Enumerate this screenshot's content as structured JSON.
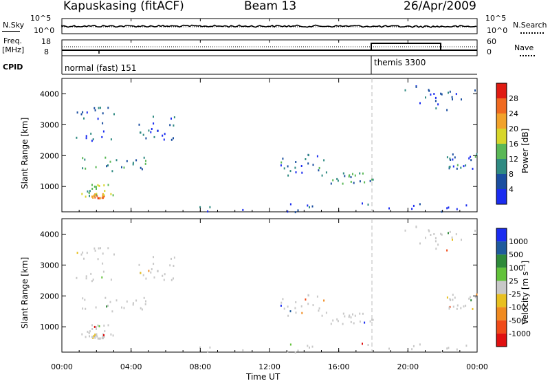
{
  "header": {
    "station": "Kapuskasing (fitACF)",
    "beam": "Beam 13",
    "date": "26/Apr/2009"
  },
  "strip": {
    "nsky_label": "N.Sky",
    "nsky_top": "10^5",
    "nsky_bottom": "10^0",
    "nsearch_label": "N.Search",
    "nsearch_top": "10^5",
    "nsearch_bottom": "10^0",
    "freq_label": "Freq.",
    "freq_unit": "[MHz]",
    "freq_top": "18",
    "freq_bottom": "8",
    "nave_label": "Nave",
    "nave_top": "60",
    "nave_bottom": "0",
    "cpid_label": "CPID",
    "cpid_1": "normal (fast) 151",
    "cpid_2": "themis 3300"
  },
  "axes": {
    "xlabel": "Time UT",
    "ylabel": "Slant Range [km]",
    "xticks": [
      "00:00",
      "04:00",
      "08:00",
      "12:00",
      "16:00",
      "20:00",
      "00:00"
    ],
    "yticks": [
      "1000",
      "2000",
      "3000",
      "4000"
    ]
  },
  "power_scale": {
    "label": "Power [dB]",
    "ticks": [
      "4",
      "8",
      "12",
      "16",
      "20",
      "24",
      "28"
    ],
    "colors": [
      "#1a2cf0",
      "#1a4ea0",
      "#2f8a82",
      "#5ab856",
      "#d7d62a",
      "#f2a22a",
      "#f06a20",
      "#e01b12"
    ]
  },
  "velocity_scale": {
    "label": "Velocity [m s⁻¹]",
    "ticks": [
      "1000",
      "500",
      "100",
      "25",
      "-25",
      "-100",
      "-500",
      "-1000"
    ],
    "colors": [
      "#1a2cf0",
      "#1e5a9c",
      "#2e8a3a",
      "#62c23a",
      "#c8c8c8",
      "#e8c020",
      "#f08a20",
      "#f04a18",
      "#e01010"
    ]
  },
  "chart_data": [
    {
      "type": "heatmap",
      "title": "Power",
      "xlabel": "Time UT",
      "ylabel": "Slant Range [km]",
      "xlim": [
        0,
        24
      ],
      "ylim": [
        180,
        4500
      ],
      "zlabel": "Power [dB]",
      "zlim": [
        0,
        30
      ],
      "scatter_regions": [
        {
          "t": [
            0.8,
            5.0
          ],
          "range": [
            1500,
            2000
          ],
          "power": 10
        },
        {
          "t": [
            0.8,
            3.0
          ],
          "range": [
            2500,
            3600
          ],
          "power": 6
        },
        {
          "t": [
            1.0,
            3.0
          ],
          "range": [
            700,
            1100
          ],
          "power": 14
        },
        {
          "t": [
            1.7,
            2.5
          ],
          "range": [
            650,
            800
          ],
          "power": 24
        },
        {
          "t": [
            4.0,
            6.5
          ],
          "range": [
            2500,
            3300
          ],
          "power": 6
        },
        {
          "t": [
            12.3,
            15.5
          ],
          "range": [
            1300,
            2100
          ],
          "power": 8
        },
        {
          "t": [
            15.5,
            18.0
          ],
          "range": [
            1100,
            1500
          ],
          "power": 12
        },
        {
          "t": [
            22.0,
            24.0
          ],
          "range": [
            1600,
            2100
          ],
          "power": 8
        },
        {
          "t": [
            19.5,
            24.0
          ],
          "range": [
            3500,
            4300
          ],
          "power": 5
        },
        {
          "t": [
            6.5,
            24.0
          ],
          "range": [
            200,
            500
          ],
          "power": 5
        }
      ]
    },
    {
      "type": "heatmap",
      "title": "Velocity",
      "xlabel": "Time UT",
      "ylabel": "Slant Range [km]",
      "xlim": [
        0,
        24
      ],
      "ylim": [
        180,
        4500
      ],
      "zlabel": "Velocity [m s⁻¹]",
      "zlim": [
        -1000,
        1000
      ],
      "scatter_regions": [
        {
          "t": [
            0.8,
            5.0
          ],
          "range": [
            1500,
            2000
          ],
          "velocity": 0
        },
        {
          "t": [
            0.8,
            3.0
          ],
          "range": [
            2500,
            3600
          ],
          "velocity": 0
        },
        {
          "t": [
            1.0,
            3.0
          ],
          "range": [
            700,
            1100
          ],
          "velocity": 0
        },
        {
          "t": [
            12.3,
            15.5
          ],
          "range": [
            1300,
            2100
          ],
          "velocity": 0
        },
        {
          "t": [
            15.5,
            18.0
          ],
          "range": [
            1100,
            1500
          ],
          "velocity": 0
        },
        {
          "t": [
            22.0,
            24.0
          ],
          "range": [
            1600,
            2100
          ],
          "velocity": 0
        }
      ]
    }
  ]
}
